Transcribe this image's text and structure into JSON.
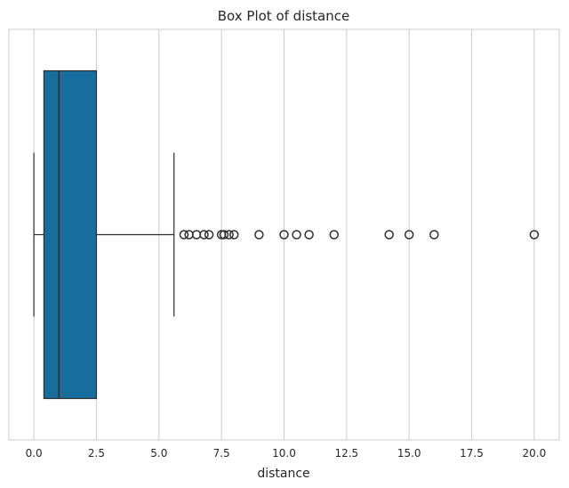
{
  "chart_data": {
    "type": "box",
    "title": "Box Plot of distance",
    "xlabel": "distance",
    "ylabel": "",
    "orientation": "horizontal",
    "xlim": [
      -1.0,
      21.0
    ],
    "xticks": [
      0.0,
      2.5,
      5.0,
      7.5,
      10.0,
      12.5,
      15.0,
      17.5,
      20.0
    ],
    "xtick_labels": [
      "0.0",
      "2.5",
      "5.0",
      "7.5",
      "10.0",
      "12.5",
      "15.0",
      "17.5",
      "20.0"
    ],
    "grid": "vertical",
    "box": {
      "whisker_low": 0.0,
      "q1": 0.4,
      "median": 1.0,
      "q3": 2.5,
      "whisker_high": 5.6,
      "color": "#176d9c"
    },
    "outliers": [
      6.0,
      6.2,
      6.5,
      6.8,
      7.0,
      7.5,
      7.6,
      7.8,
      8.0,
      9.0,
      10.0,
      10.5,
      11.0,
      12.0,
      14.2,
      15.0,
      16.0,
      20.0
    ]
  }
}
